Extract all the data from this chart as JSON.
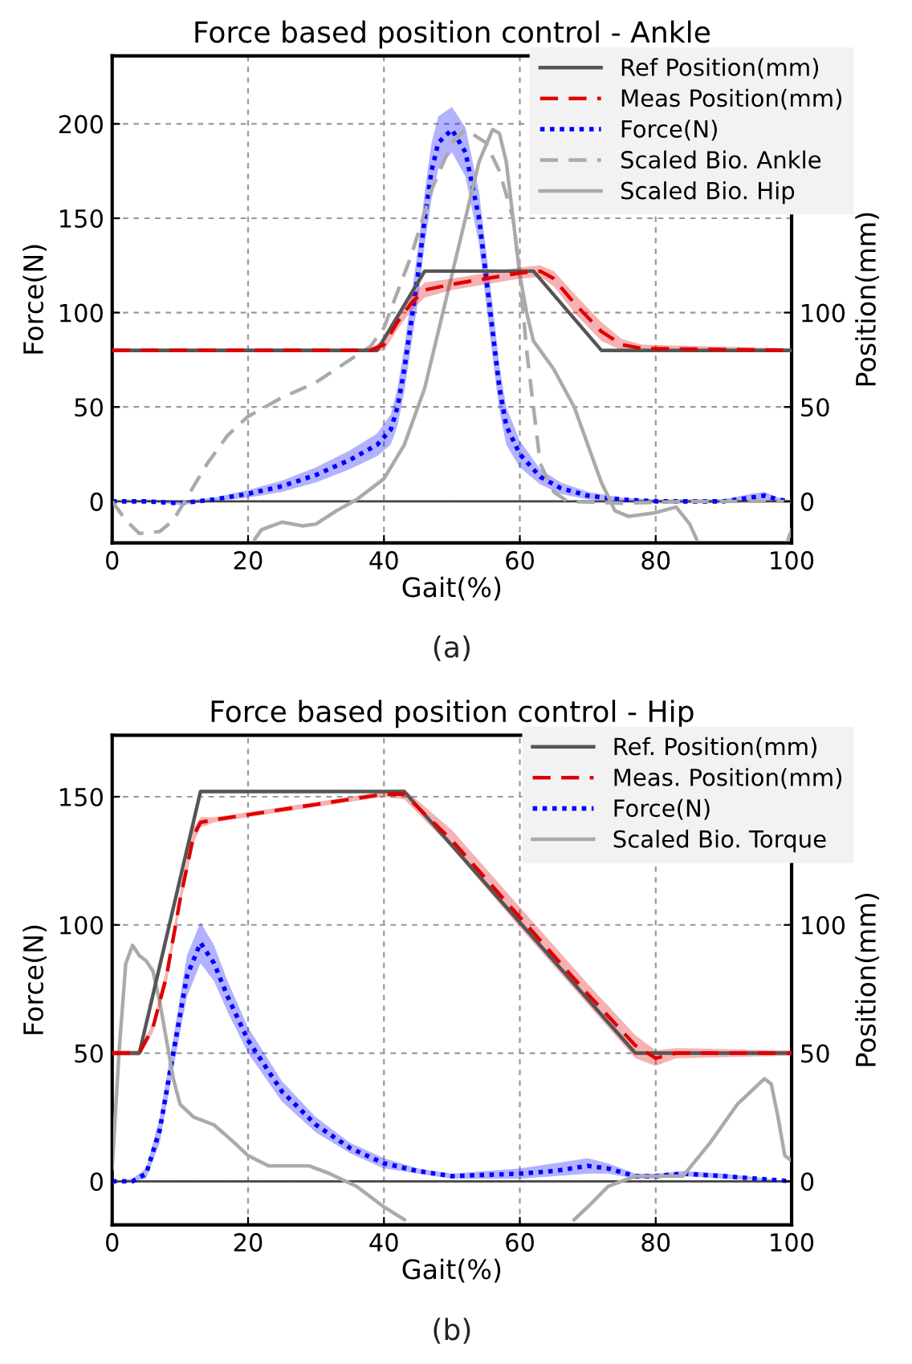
{
  "chart_data": [
    {
      "type": "line",
      "title": "Force based position control - Ankle",
      "xlabel": "Gait(%)",
      "ylabel": "Force(N)",
      "y2label": "Position(mm)",
      "annotations": [
        "(a)"
      ],
      "xlim": [
        0,
        100
      ],
      "xticks": [
        0,
        20,
        40,
        60,
        80,
        100
      ],
      "ylim": [
        -22,
        236
      ],
      "yticks": [
        0,
        50,
        100,
        150,
        200
      ],
      "y2lim": [
        -22,
        236
      ],
      "y2ticks": [
        0,
        50,
        100
      ],
      "grid": true,
      "legend": "top right",
      "ref_lines": [
        {
          "axis": "y",
          "value": 0,
          "color": "#444444"
        }
      ],
      "series": [
        {
          "name": "Ref Position(mm)",
          "axis": "y2",
          "color": "#555555",
          "line_style": "solid",
          "x": [
            0,
            39,
            46,
            62,
            72,
            100
          ],
          "values": [
            80,
            80,
            122,
            122,
            80,
            80
          ]
        },
        {
          "name": "Meas Position(mm)",
          "axis": "y2",
          "color": "#e00000",
          "line_style": "dashed",
          "x": [
            0,
            38,
            40,
            42,
            44,
            46,
            50,
            55,
            60,
            63,
            65,
            68,
            72,
            75,
            78,
            100
          ],
          "values": [
            80,
            80,
            83,
            95,
            105,
            112,
            115,
            118,
            121,
            122,
            118,
            105,
            90,
            83,
            81,
            80
          ],
          "lower": [
            79,
            79,
            80,
            91,
            101,
            108,
            112,
            115,
            118,
            119,
            114,
            100,
            85,
            80,
            79,
            79
          ],
          "upper": [
            81,
            81,
            86,
            99,
            109,
            116,
            118,
            121,
            124,
            125,
            122,
            110,
            95,
            86,
            83,
            81
          ]
        },
        {
          "name": "Force(N)",
          "color": "#0000ff",
          "line_style": "dotted",
          "x": [
            0,
            5,
            10,
            15,
            20,
            25,
            30,
            35,
            39,
            41,
            42,
            43,
            44,
            45,
            46,
            47,
            48,
            50,
            52,
            54,
            55,
            56,
            57,
            58,
            60,
            63,
            66,
            70,
            75,
            80,
            90,
            94,
            96,
            98,
            100
          ],
          "values": [
            0,
            0,
            -1,
            1,
            4,
            8,
            14,
            22,
            30,
            38,
            50,
            70,
            95,
            120,
            150,
            175,
            190,
            197,
            185,
            150,
            120,
            90,
            60,
            40,
            25,
            13,
            7,
            3,
            1,
            0,
            0,
            2,
            3,
            1,
            0
          ],
          "lower": [
            0,
            0,
            -2,
            0,
            2,
            5,
            10,
            17,
            24,
            30,
            40,
            58,
            82,
            106,
            136,
            160,
            176,
            185,
            172,
            136,
            106,
            76,
            48,
            30,
            18,
            9,
            4,
            1,
            0,
            -1,
            -1,
            0,
            1,
            0,
            0
          ],
          "upper": [
            0,
            1,
            0,
            2,
            6,
            11,
            18,
            27,
            36,
            46,
            60,
            82,
            108,
            134,
            164,
            190,
            204,
            209,
            198,
            164,
            134,
            104,
            72,
            50,
            32,
            17,
            10,
            5,
            2,
            1,
            1,
            4,
            5,
            2,
            0
          ]
        },
        {
          "name": "Scaled Bio. Ankle",
          "color": "#aaaaaa",
          "line_style": "dashed",
          "x": [
            0,
            2,
            4,
            7,
            9,
            11,
            14,
            17,
            20,
            25,
            30,
            35,
            38,
            40,
            44,
            47,
            50,
            52,
            55,
            57,
            59,
            60,
            61,
            62,
            63,
            65,
            67,
            75,
            85,
            100
          ],
          "values": [
            0,
            -10,
            -17,
            -16,
            -10,
            2,
            20,
            35,
            45,
            55,
            63,
            75,
            82,
            92,
            130,
            165,
            190,
            197,
            190,
            175,
            150,
            120,
            80,
            50,
            20,
            5,
            0,
            -1,
            0,
            0
          ]
        },
        {
          "name": "Scaled Bio. Hip",
          "color": "#aaaaaa",
          "line_style": "solid",
          "x": [
            21,
            22,
            25,
            28,
            30,
            33,
            36,
            40,
            43,
            46,
            48,
            50,
            52,
            54,
            56,
            57,
            58,
            59,
            60,
            61,
            62,
            63,
            65,
            68,
            70,
            72,
            74,
            76,
            80,
            83,
            85,
            86,
            95,
            99.5,
            100
          ],
          "values": [
            -20,
            -15,
            -11,
            -13,
            -12,
            -5,
            1,
            12,
            30,
            60,
            90,
            120,
            150,
            180,
            197,
            195,
            180,
            150,
            120,
            100,
            85,
            80,
            70,
            50,
            30,
            10,
            -5,
            -8,
            -6,
            -3,
            -12,
            -20,
            null,
            -20,
            -15
          ]
        }
      ]
    },
    {
      "type": "line",
      "title": "Force based position control - Hip",
      "xlabel": "Gait(%)",
      "ylabel": "Force(N)",
      "y2label": "Position(mm)",
      "annotations": [
        "(b)"
      ],
      "xlim": [
        0,
        100
      ],
      "xticks": [
        0,
        20,
        40,
        60,
        80,
        100
      ],
      "ylim": [
        -17,
        174
      ],
      "yticks": [
        0,
        50,
        100,
        150
      ],
      "y2lim": [
        -17,
        174
      ],
      "y2ticks": [
        0,
        50,
        100
      ],
      "grid": true,
      "legend": "top right",
      "ref_lines": [
        {
          "axis": "y",
          "value": 0,
          "color": "#444444"
        }
      ],
      "series": [
        {
          "name": "Ref. Position(mm)",
          "axis": "y2",
          "color": "#555555",
          "line_style": "solid",
          "x": [
            0,
            4,
            13,
            43,
            77,
            100
          ],
          "values": [
            50,
            50,
            152,
            152,
            50,
            50
          ]
        },
        {
          "name": "Meas. Position(mm)",
          "axis": "y2",
          "color": "#e00000",
          "line_style": "dashed",
          "x": [
            0,
            4,
            6,
            8,
            10,
            12,
            13,
            15,
            20,
            30,
            40,
            43,
            50,
            60,
            70,
            77,
            80,
            83,
            100
          ],
          "values": [
            50,
            50,
            60,
            80,
            110,
            135,
            140,
            141,
            143,
            147,
            151,
            151,
            133,
            103,
            73,
            53,
            48,
            50,
            50
          ],
          "lower": [
            49,
            49,
            58,
            77,
            107,
            132,
            138,
            140,
            142,
            146,
            150,
            149,
            130,
            99,
            69,
            48,
            45,
            48,
            49
          ],
          "upper": [
            51,
            51,
            62,
            83,
            113,
            138,
            142,
            142,
            144,
            148,
            152,
            153,
            137,
            107,
            77,
            57,
            51,
            52,
            51
          ]
        },
        {
          "name": "Force(N)",
          "color": "#0000ff",
          "line_style": "dotted",
          "x": [
            0,
            3,
            5,
            7,
            9,
            11,
            13,
            15,
            17,
            20,
            25,
            30,
            35,
            40,
            45,
            50,
            60,
            65,
            70,
            73,
            77,
            80,
            84,
            90,
            100
          ],
          "values": [
            0,
            0,
            3,
            20,
            50,
            80,
            93,
            85,
            72,
            55,
            35,
            22,
            13,
            7,
            4,
            2,
            3,
            4,
            6,
            5,
            2,
            2,
            3,
            2,
            0
          ],
          "lower": [
            0,
            0,
            1,
            15,
            44,
            72,
            85,
            78,
            66,
            50,
            31,
            19,
            11,
            5,
            3,
            1,
            1,
            2,
            3,
            3,
            1,
            1,
            2,
            1,
            0
          ],
          "upper": [
            0,
            1,
            5,
            25,
            56,
            88,
            101,
            92,
            78,
            60,
            39,
            25,
            15,
            9,
            5,
            3,
            5,
            7,
            9,
            7,
            3,
            3,
            4,
            3,
            0
          ]
        },
        {
          "name": "Scaled Bio. Torque",
          "color": "#aaaaaa",
          "line_style": "solid",
          "x": [
            0,
            1,
            2,
            3,
            4,
            5,
            6,
            7,
            8,
            9,
            10,
            12,
            15,
            18,
            20,
            23,
            26,
            29,
            32,
            36,
            40,
            43,
            55,
            68,
            70,
            73,
            77,
            80,
            84,
            88,
            92,
            96,
            97,
            98,
            99,
            100
          ],
          "values": [
            5,
            50,
            85,
            92,
            88,
            86,
            82,
            70,
            55,
            40,
            30,
            25,
            22,
            15,
            10,
            6,
            6,
            6,
            3,
            -2,
            -10,
            -15,
            null,
            -15,
            -10,
            -2,
            2,
            2,
            2,
            15,
            30,
            40,
            38,
            25,
            10,
            8
          ]
        }
      ]
    }
  ]
}
